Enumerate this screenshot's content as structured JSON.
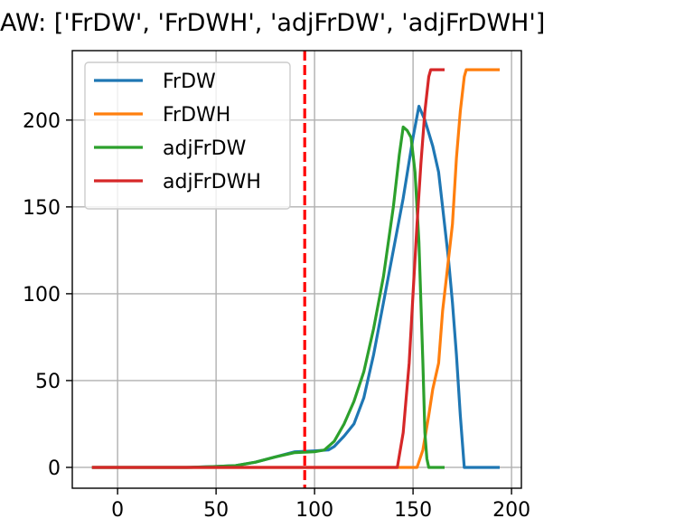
{
  "title_text": "AW: ['FrDW', 'FrDWH', 'adjFrDW', 'adjFrDWH']",
  "chart_data": {
    "type": "line",
    "title": "AW: ['FrDW', 'FrDWH', 'adjFrDW', 'adjFrDWH']",
    "xlabel": "",
    "ylabel": "",
    "xlim": [
      -23,
      205
    ],
    "ylim": [
      -12,
      240
    ],
    "xticks": [
      0,
      50,
      100,
      150,
      200
    ],
    "yticks": [
      0,
      50,
      100,
      150,
      200
    ],
    "grid": true,
    "legend_position": "upper-left",
    "vline": {
      "x": 95,
      "color": "#ff0000",
      "style": "dashed"
    },
    "series": [
      {
        "name": "FrDW",
        "color": "#1f77b4",
        "points": [
          [
            -13,
            0
          ],
          [
            35,
            0
          ],
          [
            50,
            0.5
          ],
          [
            60,
            1
          ],
          [
            70,
            3
          ],
          [
            80,
            6
          ],
          [
            90,
            9
          ],
          [
            100,
            9.5
          ],
          [
            107,
            10
          ],
          [
            110,
            12
          ],
          [
            115,
            18
          ],
          [
            120,
            25
          ],
          [
            125,
            40
          ],
          [
            130,
            65
          ],
          [
            135,
            95
          ],
          [
            140,
            125
          ],
          [
            145,
            155
          ],
          [
            150,
            190
          ],
          [
            153,
            208
          ],
          [
            156,
            200
          ],
          [
            160,
            185
          ],
          [
            163,
            170
          ],
          [
            165,
            150
          ],
          [
            168,
            120
          ],
          [
            170,
            95
          ],
          [
            172,
            65
          ],
          [
            174,
            30
          ],
          [
            176,
            0
          ],
          [
            194,
            0
          ]
        ]
      },
      {
        "name": "FrDWH",
        "color": "#ff7f0e",
        "points": [
          [
            -13,
            0
          ],
          [
            152,
            0
          ],
          [
            155,
            10
          ],
          [
            158,
            30
          ],
          [
            160,
            45
          ],
          [
            163,
            60
          ],
          [
            165,
            90
          ],
          [
            167,
            110
          ],
          [
            170,
            140
          ],
          [
            172,
            178
          ],
          [
            174,
            205
          ],
          [
            176,
            225
          ],
          [
            177,
            229
          ],
          [
            194,
            229
          ]
        ]
      },
      {
        "name": "adjFrDW",
        "color": "#2ca02c",
        "points": [
          [
            -13,
            0
          ],
          [
            37,
            0
          ],
          [
            50,
            0.5
          ],
          [
            60,
            1
          ],
          [
            70,
            3
          ],
          [
            80,
            6
          ],
          [
            90,
            8.5
          ],
          [
            100,
            9
          ],
          [
            105,
            10
          ],
          [
            110,
            15
          ],
          [
            115,
            25
          ],
          [
            120,
            38
          ],
          [
            125,
            55
          ],
          [
            130,
            80
          ],
          [
            135,
            110
          ],
          [
            140,
            150
          ],
          [
            143,
            180
          ],
          [
            145,
            196
          ],
          [
            147,
            194
          ],
          [
            149,
            190
          ],
          [
            151,
            170
          ],
          [
            153,
            130
          ],
          [
            155,
            60
          ],
          [
            156,
            20
          ],
          [
            157,
            5
          ],
          [
            158,
            0
          ],
          [
            166,
            0
          ]
        ]
      },
      {
        "name": "adjFrDWH",
        "color": "#d62728",
        "points": [
          [
            -13,
            0
          ],
          [
            142,
            0
          ],
          [
            145,
            20
          ],
          [
            148,
            60
          ],
          [
            150,
            100
          ],
          [
            152,
            140
          ],
          [
            154,
            175
          ],
          [
            156,
            205
          ],
          [
            158,
            225
          ],
          [
            159,
            229
          ],
          [
            166,
            229
          ]
        ]
      }
    ]
  }
}
